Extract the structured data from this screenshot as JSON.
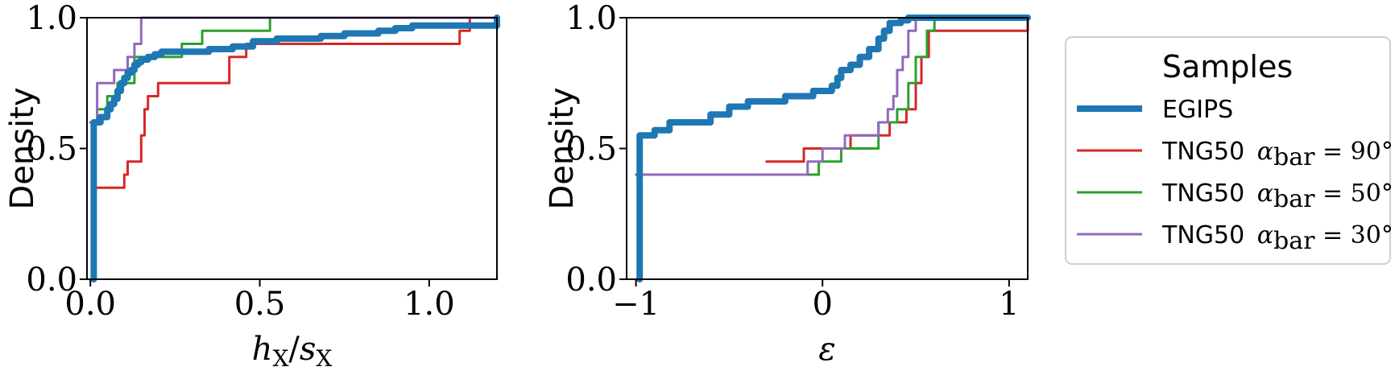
{
  "chart_data": [
    {
      "type": "line",
      "subtype": "step-cdf",
      "xlabel": "h_X/s_X",
      "ylabel": "Density",
      "xlim": [
        -0.01,
        1.2
      ],
      "ylim": [
        0.0,
        1.0
      ],
      "xticks": [
        0.0,
        0.5,
        1.0
      ],
      "xtick_labels": [
        "0.0",
        "0.5",
        "1.0"
      ],
      "yticks": [
        0.0,
        0.5,
        1.0
      ],
      "ytick_labels": [
        "0.0",
        "0.5",
        "1.0"
      ],
      "series": [
        {
          "name": "EGIPS",
          "color": "#1f77b4",
          "x": [
            0.01,
            0.01,
            0.03,
            0.05,
            0.06,
            0.07,
            0.08,
            0.09,
            0.1,
            0.11,
            0.12,
            0.13,
            0.14,
            0.15,
            0.17,
            0.19,
            0.21,
            0.26,
            0.35,
            0.42,
            0.48,
            0.55,
            0.68,
            0.75,
            0.85,
            0.9,
            0.95,
            1.2
          ],
          "y": [
            0.0,
            0.6,
            0.62,
            0.65,
            0.67,
            0.69,
            0.72,
            0.75,
            0.77,
            0.79,
            0.8,
            0.82,
            0.83,
            0.84,
            0.85,
            0.86,
            0.87,
            0.87,
            0.88,
            0.89,
            0.91,
            0.92,
            0.93,
            0.94,
            0.95,
            0.96,
            0.97,
            1.0
          ]
        },
        {
          "name": "TNG50 α_bar = 90°",
          "color": "#d62728",
          "x": [
            0.02,
            0.1,
            0.11,
            0.15,
            0.16,
            0.17,
            0.2,
            0.41,
            0.46,
            1.09,
            1.12,
            1.2
          ],
          "y": [
            0.35,
            0.4,
            0.45,
            0.55,
            0.65,
            0.7,
            0.75,
            0.85,
            0.9,
            0.95,
            1.0,
            1.0
          ]
        },
        {
          "name": "TNG50 α_bar = 50°",
          "color": "#2ca02c",
          "x": [
            0.0,
            0.02,
            0.05,
            0.08,
            0.13,
            0.27,
            0.33,
            0.53,
            1.2
          ],
          "y": [
            0.6,
            0.65,
            0.7,
            0.75,
            0.85,
            0.9,
            0.95,
            1.0,
            1.0
          ]
        },
        {
          "name": "TNG50 α_bar = 30°",
          "color": "#9467bd",
          "x": [
            0.0,
            0.02,
            0.07,
            0.11,
            0.13,
            0.15,
            1.2
          ],
          "y": [
            0.6,
            0.75,
            0.8,
            0.85,
            0.9,
            1.0,
            1.0
          ]
        }
      ]
    },
    {
      "type": "line",
      "subtype": "step-cdf",
      "xlabel": "ε",
      "ylabel": "Density",
      "xlim": [
        -1.05,
        1.1
      ],
      "ylim": [
        0.0,
        1.0
      ],
      "xticks": [
        -1,
        0,
        1
      ],
      "xtick_labels": [
        "−1",
        "0",
        "1"
      ],
      "yticks": [
        0.0,
        0.5,
        1.0
      ],
      "ytick_labels": [
        "0.0",
        "0.5",
        "1.0"
      ],
      "series": [
        {
          "name": "EGIPS",
          "color": "#1f77b4",
          "x": [
            -0.98,
            -0.98,
            -0.9,
            -0.82,
            -0.6,
            -0.5,
            -0.4,
            -0.2,
            -0.05,
            0.05,
            0.08,
            0.1,
            0.15,
            0.2,
            0.25,
            0.3,
            0.33,
            0.36,
            0.42,
            0.46,
            1.1
          ],
          "y": [
            0.0,
            0.55,
            0.57,
            0.6,
            0.63,
            0.66,
            0.68,
            0.7,
            0.72,
            0.74,
            0.77,
            0.8,
            0.82,
            0.85,
            0.88,
            0.92,
            0.95,
            0.98,
            0.99,
            1.0,
            1.0
          ]
        },
        {
          "name": "TNG50 α_bar = 90°",
          "color": "#d62728",
          "x": [
            -0.3,
            -0.1,
            0.15,
            0.36,
            0.45,
            0.5,
            0.53,
            0.57,
            1.1
          ],
          "y": [
            0.45,
            0.5,
            0.55,
            0.6,
            0.65,
            0.75,
            0.85,
            0.95,
            1.0
          ]
        },
        {
          "name": "TNG50 α_bar = 50°",
          "color": "#2ca02c",
          "x": [
            -0.08,
            -0.02,
            0.1,
            0.3,
            0.4,
            0.46,
            0.5,
            0.56,
            0.6,
            1.1
          ],
          "y": [
            0.4,
            0.45,
            0.5,
            0.6,
            0.65,
            0.75,
            0.85,
            0.95,
            1.0,
            1.0
          ]
        },
        {
          "name": "TNG50 α_bar = 30°",
          "color": "#9467bd",
          "x": [
            -1.0,
            -0.08,
            0.0,
            0.12,
            0.3,
            0.35,
            0.38,
            0.4,
            0.43,
            0.46,
            0.5,
            1.1
          ],
          "y": [
            0.4,
            0.45,
            0.5,
            0.55,
            0.6,
            0.65,
            0.7,
            0.8,
            0.85,
            0.95,
            1.0,
            1.0
          ]
        }
      ]
    }
  ],
  "legend": {
    "title": "Samples",
    "placement": "right of plots",
    "entries": [
      {
        "label": "EGIPS",
        "math": "",
        "color": "#1f77b4"
      },
      {
        "label": "TNG50 ",
        "math": "α_bar = 90°",
        "color": "#d62728"
      },
      {
        "label": "TNG50 ",
        "math": "α_bar = 50°",
        "color": "#2ca02c"
      },
      {
        "label": "TNG50 ",
        "math": "α_bar = 30°",
        "color": "#9467bd"
      }
    ]
  }
}
